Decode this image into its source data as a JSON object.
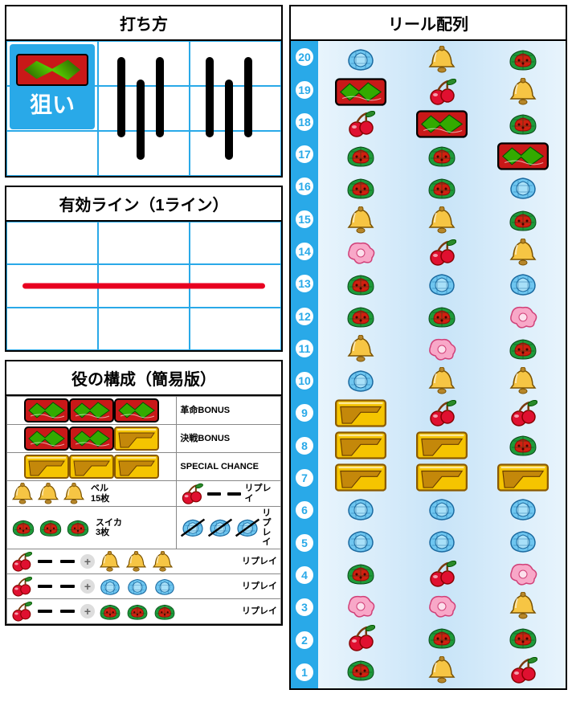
{
  "sections": {
    "play": {
      "title": "打ち方",
      "aim_label": "狙い"
    },
    "payline": {
      "title": "有効ライン（1ライン）"
    },
    "combos": {
      "title": "役の構成（簡易版）"
    },
    "reels": {
      "title": "リール配列"
    }
  },
  "colors": {
    "border_blue": "#29a9e8",
    "payline_red": "#e80020",
    "black": "#000000",
    "gold": "#f5c400",
    "gold_dark": "#c4880a",
    "red7_bg": "#c91818",
    "cherry_red": "#e01030",
    "cherry_leaf": "#2a8a2a",
    "bell_yellow": "#f6c544",
    "bell_shade": "#b6862a",
    "melon_green": "#1e9a3a",
    "melon_red": "#d02010",
    "melon_edge": "#9e0606",
    "blue_sym": "#6ec6f0",
    "blue_edge": "#1b6aa0",
    "pink_sym": "#f8a8c8",
    "pink_edge": "#d04078",
    "grey_plus": "#dddddd"
  },
  "symbols": {
    "red7": {
      "w": 56,
      "h": 30
    },
    "gold7": {
      "w": 56,
      "h": 30
    },
    "cherry": {
      "w": 36,
      "h": 34
    },
    "bell": {
      "w": 38,
      "h": 34
    },
    "melon": {
      "w": 40,
      "h": 30
    },
    "blue": {
      "w": 40,
      "h": 30
    },
    "pink": {
      "w": 40,
      "h": 30
    }
  },
  "combos": [
    {
      "type": "full",
      "symbols": [
        "red7",
        "red7",
        "red7"
      ],
      "label": "革命BONUS"
    },
    {
      "type": "full",
      "symbols": [
        "red7",
        "red7",
        "gold7"
      ],
      "label": "決戦BONUS"
    },
    {
      "type": "full",
      "symbols": [
        "gold7",
        "gold7",
        "gold7"
      ],
      "label": "SPECIAL CHANCE"
    },
    {
      "type": "split",
      "left": {
        "symbols": [
          "bell",
          "bell",
          "bell"
        ],
        "label": "ベル\n15枚"
      },
      "right": {
        "symbols": [
          "cherry",
          "dash",
          "dash"
        ],
        "label": "リプレイ"
      }
    },
    {
      "type": "split",
      "left": {
        "symbols": [
          "melon",
          "melon",
          "melon"
        ],
        "label": "スイカ\n3枚"
      },
      "right": {
        "symbols": [
          "blue",
          "blue",
          "blue"
        ],
        "slashed": true,
        "label": "リプレイ"
      }
    },
    {
      "type": "plus",
      "left": [
        "cherry",
        "dash",
        "dash"
      ],
      "right": [
        "bell",
        "bell",
        "bell"
      ],
      "label": "リプレイ"
    },
    {
      "type": "plus",
      "left": [
        "cherry",
        "dash",
        "dash"
      ],
      "right": [
        "blue",
        "blue",
        "blue"
      ],
      "label": "リプレイ"
    },
    {
      "type": "plus",
      "left": [
        "cherry",
        "dash",
        "dash"
      ],
      "right": [
        "melon",
        "melon",
        "melon"
      ],
      "label": "リプレイ"
    }
  ],
  "reels": {
    "count": 20,
    "columns": [
      [
        "melon",
        "cherry",
        "pink",
        "melon",
        "blue",
        "blue",
        "gold7",
        "gold7",
        "gold7",
        "blue",
        "bell",
        "melon",
        "melon",
        "pink",
        "bell",
        "melon",
        "melon",
        "cherry",
        "red7",
        "blue"
      ],
      [
        "bell",
        "melon",
        "pink",
        "cherry",
        "blue",
        "blue",
        "gold7",
        "gold7",
        "cherry",
        "bell",
        "pink",
        "melon",
        "blue",
        "cherry",
        "bell",
        "melon",
        "melon",
        "red7",
        "cherry",
        "bell"
      ],
      [
        "cherry",
        "melon",
        "bell",
        "pink",
        "blue",
        "blue",
        "gold7",
        "melon",
        "cherry",
        "bell",
        "melon",
        "pink",
        "blue",
        "bell",
        "melon",
        "blue",
        "red7",
        "melon",
        "bell",
        "melon"
      ]
    ]
  }
}
